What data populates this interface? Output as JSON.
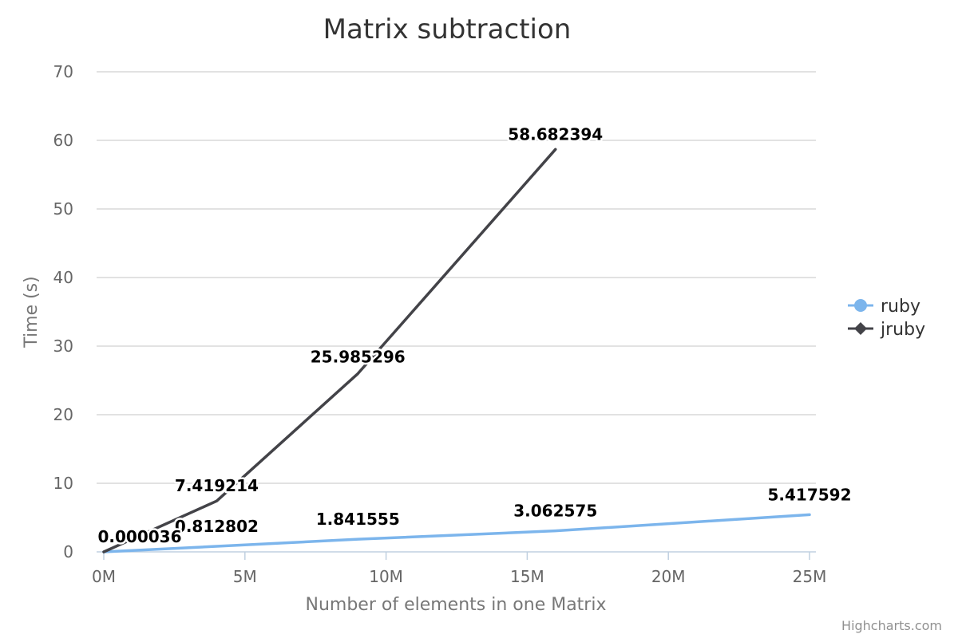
{
  "chart_data": {
    "type": "line",
    "title": "Matrix subtraction",
    "xlabel": "Number of elements in one Matrix",
    "ylabel": "Time (s)",
    "xlim": [
      0,
      25000000
    ],
    "ylim": [
      0,
      70
    ],
    "x_ticks": [
      {
        "value": 0,
        "label": "0M"
      },
      {
        "value": 5000000,
        "label": "5M"
      },
      {
        "value": 10000000,
        "label": "10M"
      },
      {
        "value": 15000000,
        "label": "15M"
      },
      {
        "value": 20000000,
        "label": "20M"
      },
      {
        "value": 25000000,
        "label": "25M"
      }
    ],
    "y_ticks": [
      0,
      10,
      20,
      30,
      40,
      50,
      60,
      70
    ],
    "grid": true,
    "legend_position": "right",
    "series": [
      {
        "name": "ruby",
        "color": "#7cb5ec",
        "marker": "circle",
        "points": [
          {
            "x": 0,
            "y": 3.6e-05
          },
          {
            "x": 4000000,
            "y": 0.812802
          },
          {
            "x": 9000000,
            "y": 1.841555
          },
          {
            "x": 16000000,
            "y": 3.062575
          },
          {
            "x": 25000000,
            "y": 5.417592
          }
        ],
        "data_labels": [
          "0.812802",
          "1.841555",
          "3.062575",
          "5.417592"
        ]
      },
      {
        "name": "jruby",
        "color": "#434348",
        "marker": "diamond",
        "points": [
          {
            "x": 0,
            "y": 3.6e-05
          },
          {
            "x": 4000000,
            "y": 7.419214
          },
          {
            "x": 9000000,
            "y": 25.985296
          },
          {
            "x": 16000000,
            "y": 58.682394
          }
        ],
        "data_labels": [
          "0.000036",
          "7.419214",
          "25.985296",
          "58.682394"
        ]
      }
    ]
  },
  "credits": "Highcharts.com"
}
